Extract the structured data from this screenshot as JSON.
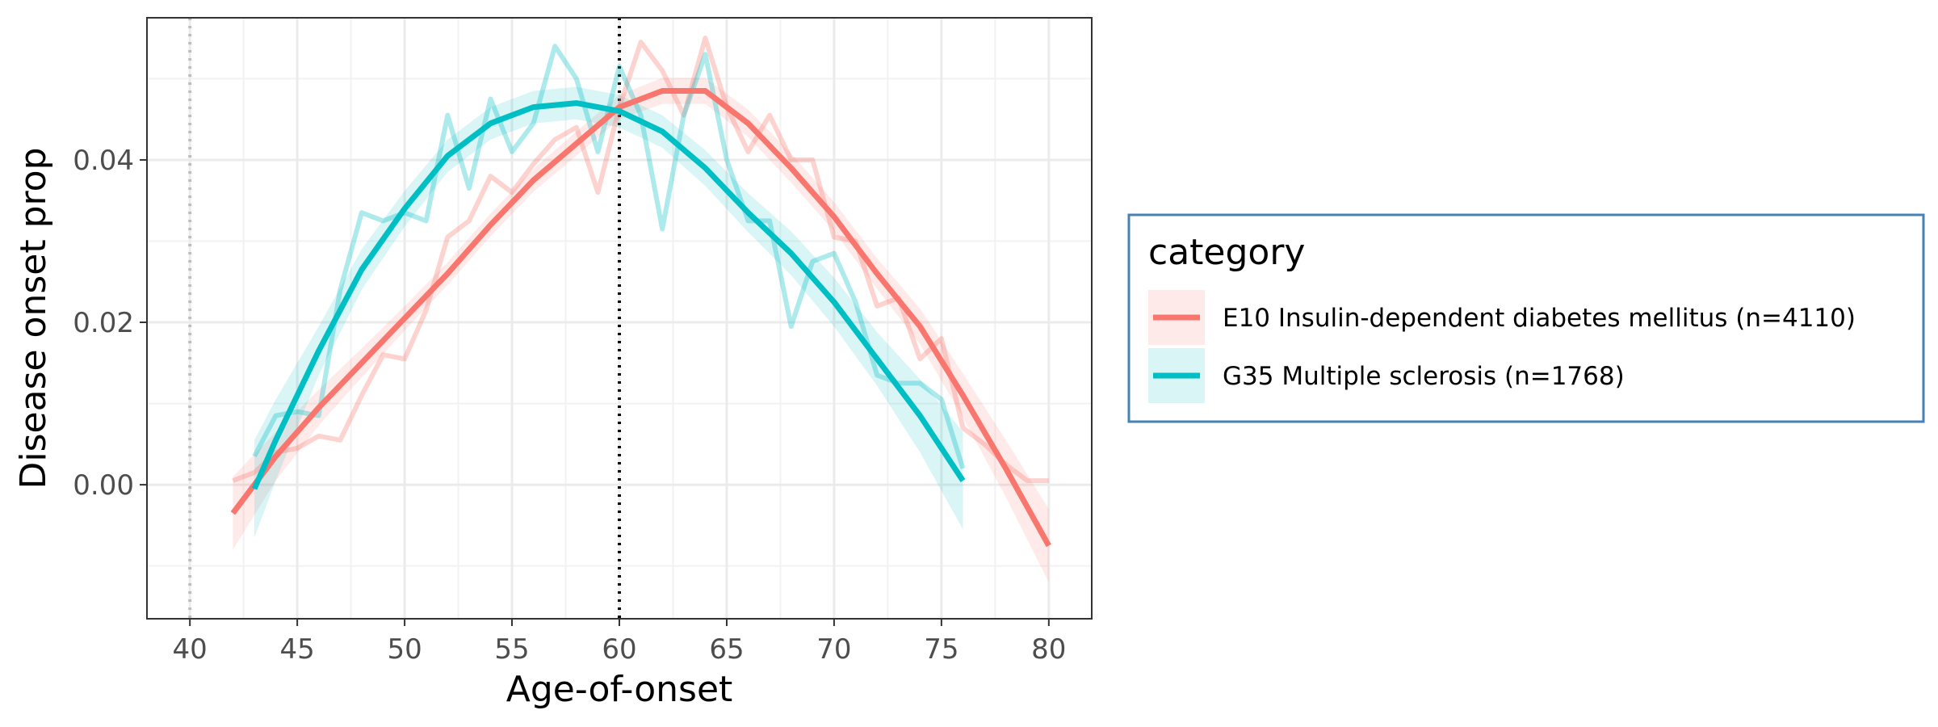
{
  "chart_data": {
    "type": "line",
    "xlabel": "Age-of-onset",
    "ylabel": "Disease onset prop",
    "xlim": [
      38,
      82
    ],
    "ylim": [
      -0.0165,
      0.0575
    ],
    "x_ticks": [
      "40",
      "45",
      "50",
      "55",
      "60",
      "65",
      "70",
      "75",
      "80"
    ],
    "x_tick_values": [
      40,
      45,
      50,
      55,
      60,
      65,
      70,
      75,
      80
    ],
    "y_ticks": [
      "0.00",
      "0.02",
      "0.04"
    ],
    "y_tick_values": [
      0.0,
      0.02,
      0.04
    ],
    "grid": true,
    "reference_lines": [
      {
        "x": 40,
        "style": "dotted",
        "color": "#bdbdbd"
      },
      {
        "x": 60,
        "style": "dotted",
        "color": "#000000"
      }
    ],
    "legend": {
      "title": "category",
      "placement": "right",
      "border_color": "#4682b4"
    },
    "series": [
      {
        "name": "E10 Insulin-dependent diabetes mellitus (n=4110)",
        "color": "#F8766D",
        "raw": {
          "x": [
            42,
            43,
            44,
            45,
            46,
            47,
            48,
            49,
            50,
            51,
            52,
            53,
            54,
            55,
            56,
            57,
            58,
            59,
            60,
            61,
            62,
            63,
            64,
            65,
            66,
            67,
            68,
            69,
            70,
            71,
            72,
            73,
            74,
            75,
            76,
            77,
            78,
            79,
            80
          ],
          "y": [
            0.0005,
            0.0015,
            0.004,
            0.0045,
            0.006,
            0.0055,
            0.011,
            0.016,
            0.0155,
            0.0215,
            0.0305,
            0.0325,
            0.038,
            0.036,
            0.0395,
            0.0425,
            0.044,
            0.036,
            0.0465,
            0.0545,
            0.051,
            0.0455,
            0.055,
            0.0465,
            0.041,
            0.0455,
            0.04,
            0.04,
            0.0305,
            0.03,
            0.022,
            0.023,
            0.0155,
            0.018,
            0.007,
            0.005,
            0.0025,
            0.0005,
            0.0005
          ]
        },
        "smooth": {
          "x": [
            42,
            44,
            46,
            48,
            50,
            52,
            54,
            56,
            58,
            60,
            62,
            64,
            66,
            68,
            70,
            72,
            74,
            76,
            78,
            80
          ],
          "y": [
            -0.0035,
            0.0035,
            0.0095,
            0.015,
            0.0205,
            0.026,
            0.032,
            0.0375,
            0.042,
            0.0465,
            0.0485,
            0.0485,
            0.0445,
            0.039,
            0.033,
            0.026,
            0.0195,
            0.011,
            0.002,
            -0.0075
          ],
          "ci_halfwidth": [
            0.0045,
            0.003,
            0.0022,
            0.0018,
            0.0015,
            0.0014,
            0.0014,
            0.0014,
            0.0015,
            0.0015,
            0.0016,
            0.0016,
            0.0017,
            0.0018,
            0.0018,
            0.0019,
            0.0022,
            0.0027,
            0.0035,
            0.0045
          ]
        }
      },
      {
        "name": "G35 Multiple sclerosis (n=1768)",
        "color": "#00BFC4",
        "raw": {
          "x": [
            43,
            44,
            45,
            46,
            47,
            48,
            49,
            50,
            51,
            52,
            53,
            54,
            55,
            56,
            57,
            58,
            59,
            60,
            61,
            62,
            63,
            64,
            65,
            66,
            67,
            68,
            69,
            70,
            71,
            72,
            73,
            74,
            75,
            76
          ],
          "y": [
            0.0035,
            0.0085,
            0.009,
            0.0085,
            0.024,
            0.0335,
            0.0325,
            0.0335,
            0.0325,
            0.0455,
            0.0365,
            0.0475,
            0.041,
            0.0445,
            0.054,
            0.05,
            0.041,
            0.0515,
            0.0455,
            0.0315,
            0.0455,
            0.053,
            0.04,
            0.0325,
            0.0325,
            0.0195,
            0.0275,
            0.0285,
            0.0225,
            0.0135,
            0.0125,
            0.0125,
            0.0105,
            0.002
          ]
        },
        "smooth": {
          "x": [
            43,
            44,
            46,
            48,
            50,
            52,
            54,
            56,
            58,
            60,
            62,
            64,
            66,
            68,
            70,
            72,
            74,
            76
          ],
          "y": [
            -0.0005,
            0.0055,
            0.0165,
            0.0265,
            0.034,
            0.0405,
            0.0445,
            0.0465,
            0.047,
            0.046,
            0.0435,
            0.039,
            0.0335,
            0.0285,
            0.0225,
            0.0155,
            0.0085,
            0.0005
          ],
          "ci_halfwidth": [
            0.006,
            0.005,
            0.003,
            0.0025,
            0.0022,
            0.002,
            0.002,
            0.002,
            0.002,
            0.002,
            0.002,
            0.0022,
            0.0024,
            0.0027,
            0.003,
            0.0033,
            0.0045,
            0.006
          ]
        }
      }
    ]
  }
}
